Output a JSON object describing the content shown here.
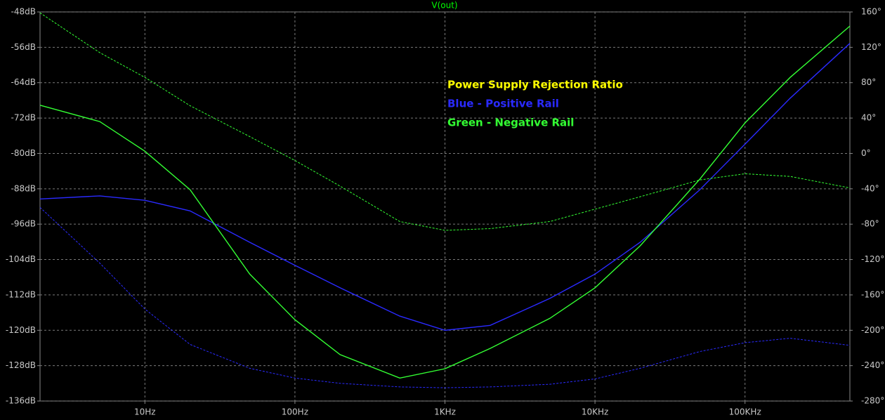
{
  "chart_data": {
    "type": "line",
    "title": "V(out)",
    "title_color": "#00ff00",
    "x_scale": "log",
    "grid": true,
    "x": [
      2,
      5,
      10,
      20,
      50,
      100,
      200,
      500,
      1000,
      2000,
      5000,
      10000,
      20000,
      50000,
      100000,
      200000,
      500000
    ],
    "xlim": [
      2,
      500000
    ],
    "xticks": [
      {
        "value": 10,
        "label": "10Hz"
      },
      {
        "value": 100,
        "label": "100Hz"
      },
      {
        "value": 1000,
        "label": "1KHz"
      },
      {
        "value": 10000,
        "label": "10KHz"
      },
      {
        "value": 100000,
        "label": "100KHz"
      }
    ],
    "ylim": [
      -136,
      -48
    ],
    "yticks": [
      {
        "value": -48,
        "label": "-48dB"
      },
      {
        "value": -56,
        "label": "-56dB"
      },
      {
        "value": -64,
        "label": "-64dB"
      },
      {
        "value": -72,
        "label": "-72dB"
      },
      {
        "value": -80,
        "label": "-80dB"
      },
      {
        "value": -88,
        "label": "-88dB"
      },
      {
        "value": -96,
        "label": "-96dB"
      },
      {
        "value": -104,
        "label": "-104dB"
      },
      {
        "value": -112,
        "label": "-112dB"
      },
      {
        "value": -120,
        "label": "-120dB"
      },
      {
        "value": -128,
        "label": "-128dB"
      },
      {
        "value": -136,
        "label": "-136dB"
      }
    ],
    "y2lim": [
      -280,
      160
    ],
    "y2ticks": [
      {
        "value": 160,
        "label": "160°"
      },
      {
        "value": 120,
        "label": "120°"
      },
      {
        "value": 80,
        "label": "80°"
      },
      {
        "value": 40,
        "label": "40°"
      },
      {
        "value": 0,
        "label": "0°"
      },
      {
        "value": -40,
        "label": "-40°"
      },
      {
        "value": -80,
        "label": "-80°"
      },
      {
        "value": -120,
        "label": "-120°"
      },
      {
        "value": -160,
        "label": "-160°"
      },
      {
        "value": -200,
        "label": "-200°"
      },
      {
        "value": -240,
        "label": "-240°"
      },
      {
        "value": -280,
        "label": "-280°"
      }
    ],
    "series": [
      {
        "color": "#2a2aff",
        "style": "solid",
        "values": [
          -90.3,
          -89.6,
          -90.6,
          -93.0,
          -100.1,
          -105.3,
          -110.4,
          -116.8,
          -120.0,
          -118.9,
          -112.8,
          -107.3,
          -100.1,
          -88.2,
          -77.9,
          -67.5,
          -55.1
        ]
      },
      {
        "color": "#33ff33",
        "style": "solid",
        "values": [
          -69.1,
          -72.8,
          -79.5,
          -88.2,
          -107.3,
          -117.6,
          -125.5,
          -130.8,
          -128.7,
          -124.1,
          -117.3,
          -110.4,
          -100.9,
          -85.8,
          -73.1,
          -62.8,
          -51.2
        ]
      },
      {
        "color": "#2a2aff",
        "style": "dashed",
        "axis": "y2",
        "values": [
          -61,
          -124,
          -176,
          -216,
          -243,
          -254,
          -260,
          -264,
          -265,
          -264,
          -261,
          -255,
          -243,
          -224,
          -214,
          -209,
          -217
        ]
      },
      {
        "color": "#33ff33",
        "style": "dashed",
        "axis": "y2",
        "values": [
          159,
          114,
          86,
          54,
          19,
          -8,
          -37,
          -77,
          -87,
          -85,
          -77,
          -63,
          -49,
          -30,
          -23,
          -26,
          -39
        ]
      }
    ],
    "annotations": [
      {
        "text": "Power Supply Rejection Ratio",
        "color": "#ffff00"
      },
      {
        "text": "Blue - Positive Rail",
        "color": "#2a2aff"
      },
      {
        "text": "Green - Negative Rail",
        "color": "#33ff33"
      }
    ]
  }
}
